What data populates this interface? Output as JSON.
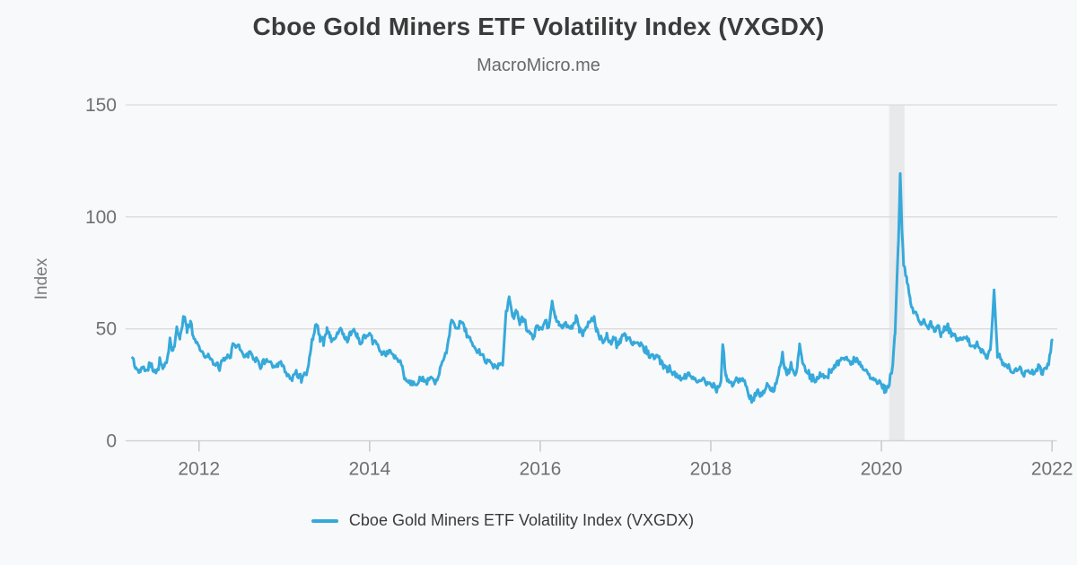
{
  "title": "Cboe Gold Miners ETF Volatility Index (VXGDX)",
  "subtitle": "MacroMicro.me",
  "colors": {
    "background": "#f8f9fa",
    "line": "#36a9db",
    "band": "#e8e9eb",
    "grid": "#dcdcdc",
    "axis": "#d2d2d2",
    "tick": "#c8c8c8"
  },
  "chart_data": {
    "type": "line",
    "title": "Cboe Gold Miners ETF Volatility Index (VXGDX)",
    "subtitle": "MacroMicro.me",
    "xlabel": "",
    "ylabel": "Index",
    "ylim": [
      0,
      150
    ],
    "yticks": [
      0,
      50,
      100,
      150
    ],
    "xticks": [
      2012,
      2014,
      2016,
      2018,
      2020,
      2022
    ],
    "x_domain": [
      2011.14,
      2022.04
    ],
    "grid": "horizontal",
    "legend_position": "bottom-center",
    "recession_band": {
      "from": 2020.09,
      "to": 2020.27
    },
    "legend": [
      {
        "label": "Cboe Gold Miners ETF Volatility Index (VXGDX)",
        "color": "#36a9db"
      }
    ],
    "noise": {
      "amplitude": 2.2,
      "step": 0.012,
      "seed": 42
    },
    "series": [
      {
        "name": "VXGDX",
        "color": "#36a9db",
        "points": [
          [
            2011.22,
            37
          ],
          [
            2011.26,
            32
          ],
          [
            2011.3,
            31
          ],
          [
            2011.34,
            34
          ],
          [
            2011.38,
            31
          ],
          [
            2011.42,
            35
          ],
          [
            2011.46,
            32
          ],
          [
            2011.5,
            30
          ],
          [
            2011.54,
            36
          ],
          [
            2011.58,
            32
          ],
          [
            2011.62,
            35
          ],
          [
            2011.66,
            44
          ],
          [
            2011.7,
            40
          ],
          [
            2011.74,
            50
          ],
          [
            2011.78,
            46
          ],
          [
            2011.82,
            56
          ],
          [
            2011.86,
            50
          ],
          [
            2011.9,
            53
          ],
          [
            2011.94,
            46
          ],
          [
            2012.0,
            42
          ],
          [
            2012.06,
            39
          ],
          [
            2012.12,
            37
          ],
          [
            2012.18,
            34
          ],
          [
            2012.24,
            33
          ],
          [
            2012.3,
            36
          ],
          [
            2012.36,
            38
          ],
          [
            2012.42,
            44
          ],
          [
            2012.48,
            41
          ],
          [
            2012.54,
            38
          ],
          [
            2012.6,
            40
          ],
          [
            2012.66,
            36
          ],
          [
            2012.72,
            34
          ],
          [
            2012.78,
            36
          ],
          [
            2012.84,
            34
          ],
          [
            2012.9,
            32
          ],
          [
            2012.96,
            35
          ],
          [
            2013.02,
            30
          ],
          [
            2013.08,
            27
          ],
          [
            2013.14,
            31
          ],
          [
            2013.2,
            28
          ],
          [
            2013.26,
            30
          ],
          [
            2013.3,
            38
          ],
          [
            2013.34,
            48
          ],
          [
            2013.38,
            52
          ],
          [
            2013.42,
            46
          ],
          [
            2013.46,
            44
          ],
          [
            2013.5,
            50
          ],
          [
            2013.54,
            46
          ],
          [
            2013.58,
            45
          ],
          [
            2013.62,
            48
          ],
          [
            2013.66,
            50
          ],
          [
            2013.7,
            47
          ],
          [
            2013.74,
            45
          ],
          [
            2013.78,
            48
          ],
          [
            2013.82,
            50
          ],
          [
            2013.86,
            46
          ],
          [
            2013.9,
            43
          ],
          [
            2013.94,
            47
          ],
          [
            2014.0,
            46
          ],
          [
            2014.06,
            44
          ],
          [
            2014.12,
            41
          ],
          [
            2014.18,
            38
          ],
          [
            2014.24,
            40
          ],
          [
            2014.3,
            37
          ],
          [
            2014.36,
            35
          ],
          [
            2014.42,
            28
          ],
          [
            2014.48,
            26
          ],
          [
            2014.54,
            25
          ],
          [
            2014.6,
            27
          ],
          [
            2014.66,
            26
          ],
          [
            2014.72,
            28
          ],
          [
            2014.78,
            26
          ],
          [
            2014.84,
            33
          ],
          [
            2014.9,
            40
          ],
          [
            2014.96,
            55
          ],
          [
            2015.02,
            50
          ],
          [
            2015.08,
            53
          ],
          [
            2015.14,
            48
          ],
          [
            2015.2,
            43
          ],
          [
            2015.26,
            40
          ],
          [
            2015.32,
            38
          ],
          [
            2015.38,
            36
          ],
          [
            2015.44,
            34
          ],
          [
            2015.5,
            33
          ],
          [
            2015.56,
            35
          ],
          [
            2015.6,
            58
          ],
          [
            2015.64,
            63
          ],
          [
            2015.68,
            55
          ],
          [
            2015.72,
            58
          ],
          [
            2015.76,
            53
          ],
          [
            2015.8,
            55
          ],
          [
            2015.84,
            50
          ],
          [
            2015.88,
            48
          ],
          [
            2015.92,
            46
          ],
          [
            2015.96,
            52
          ],
          [
            2016.0,
            49
          ],
          [
            2016.06,
            53
          ],
          [
            2016.1,
            50
          ],
          [
            2016.14,
            62
          ],
          [
            2016.18,
            56
          ],
          [
            2016.22,
            52
          ],
          [
            2016.26,
            50
          ],
          [
            2016.3,
            53
          ],
          [
            2016.34,
            49
          ],
          [
            2016.38,
            52
          ],
          [
            2016.42,
            55
          ],
          [
            2016.46,
            50
          ],
          [
            2016.5,
            47
          ],
          [
            2016.54,
            50
          ],
          [
            2016.58,
            53
          ],
          [
            2016.62,
            55
          ],
          [
            2016.66,
            50
          ],
          [
            2016.7,
            46
          ],
          [
            2016.74,
            44
          ],
          [
            2016.78,
            47
          ],
          [
            2016.82,
            44
          ],
          [
            2016.86,
            46
          ],
          [
            2016.9,
            43
          ],
          [
            2016.94,
            45
          ],
          [
            2017.0,
            47
          ],
          [
            2017.06,
            44
          ],
          [
            2017.12,
            42
          ],
          [
            2017.18,
            44
          ],
          [
            2017.24,
            40
          ],
          [
            2017.3,
            37
          ],
          [
            2017.36,
            38
          ],
          [
            2017.42,
            35
          ],
          [
            2017.48,
            33
          ],
          [
            2017.54,
            31
          ],
          [
            2017.6,
            29
          ],
          [
            2017.66,
            28
          ],
          [
            2017.72,
            30
          ],
          [
            2017.78,
            28
          ],
          [
            2017.84,
            27
          ],
          [
            2017.9,
            28
          ],
          [
            2017.96,
            26
          ],
          [
            2018.02,
            24
          ],
          [
            2018.08,
            23
          ],
          [
            2018.12,
            26
          ],
          [
            2018.14,
            44
          ],
          [
            2018.18,
            28
          ],
          [
            2018.24,
            25
          ],
          [
            2018.3,
            27
          ],
          [
            2018.36,
            29
          ],
          [
            2018.42,
            24
          ],
          [
            2018.48,
            18
          ],
          [
            2018.54,
            22
          ],
          [
            2018.6,
            20
          ],
          [
            2018.66,
            25
          ],
          [
            2018.72,
            22
          ],
          [
            2018.78,
            27
          ],
          [
            2018.84,
            38
          ],
          [
            2018.88,
            30
          ],
          [
            2018.94,
            33
          ],
          [
            2019.0,
            30
          ],
          [
            2019.04,
            42
          ],
          [
            2019.1,
            32
          ],
          [
            2019.16,
            29
          ],
          [
            2019.22,
            27
          ],
          [
            2019.28,
            30
          ],
          [
            2019.34,
            28
          ],
          [
            2019.4,
            31
          ],
          [
            2019.46,
            34
          ],
          [
            2019.52,
            36
          ],
          [
            2019.58,
            37
          ],
          [
            2019.64,
            35
          ],
          [
            2019.7,
            36
          ],
          [
            2019.76,
            33
          ],
          [
            2019.82,
            31
          ],
          [
            2019.88,
            29
          ],
          [
            2019.94,
            27
          ],
          [
            2020.0,
            25
          ],
          [
            2020.04,
            23
          ],
          [
            2020.08,
            24
          ],
          [
            2020.12,
            30
          ],
          [
            2020.16,
            48
          ],
          [
            2020.2,
            90
          ],
          [
            2020.22,
            119
          ],
          [
            2020.24,
            95
          ],
          [
            2020.26,
            80
          ],
          [
            2020.3,
            72
          ],
          [
            2020.34,
            62
          ],
          [
            2020.38,
            58
          ],
          [
            2020.42,
            55
          ],
          [
            2020.46,
            52
          ],
          [
            2020.5,
            54
          ],
          [
            2020.54,
            50
          ],
          [
            2020.58,
            53
          ],
          [
            2020.62,
            48
          ],
          [
            2020.66,
            52
          ],
          [
            2020.7,
            47
          ],
          [
            2020.74,
            50
          ],
          [
            2020.78,
            52
          ],
          [
            2020.82,
            46
          ],
          [
            2020.86,
            48
          ],
          [
            2020.9,
            44
          ],
          [
            2020.94,
            47
          ],
          [
            2021.0,
            45
          ],
          [
            2021.06,
            42
          ],
          [
            2021.12,
            44
          ],
          [
            2021.18,
            40
          ],
          [
            2021.24,
            38
          ],
          [
            2021.28,
            42
          ],
          [
            2021.32,
            67
          ],
          [
            2021.36,
            38
          ],
          [
            2021.42,
            35
          ],
          [
            2021.48,
            33
          ],
          [
            2021.54,
            31
          ],
          [
            2021.6,
            33
          ],
          [
            2021.66,
            30
          ],
          [
            2021.72,
            32
          ],
          [
            2021.78,
            29
          ],
          [
            2021.84,
            33
          ],
          [
            2021.9,
            31
          ],
          [
            2021.96,
            35
          ],
          [
            2022.0,
            45
          ]
        ]
      }
    ]
  }
}
